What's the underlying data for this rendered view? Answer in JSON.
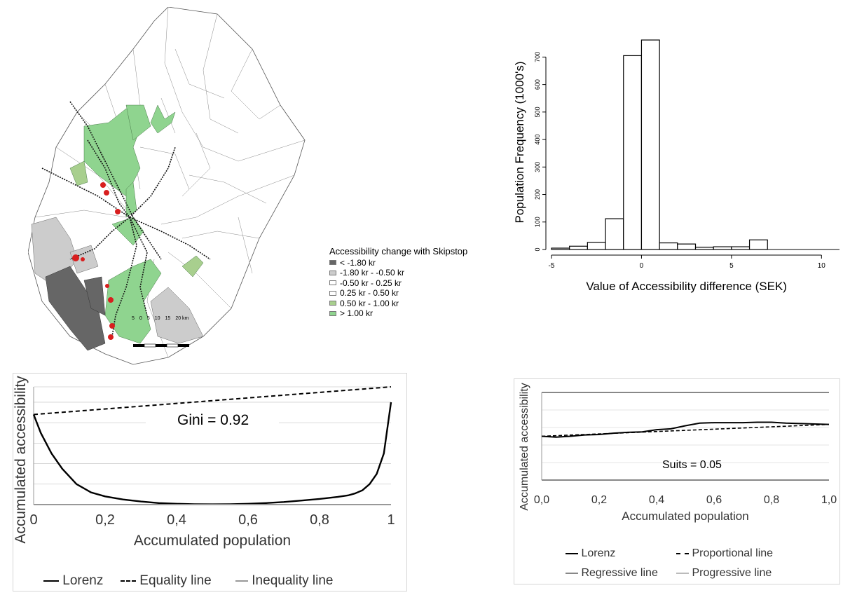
{
  "map": {
    "legend_title": "Accessibility change with Skipstop",
    "legend_items": [
      {
        "label": "< -1.80 kr",
        "color": "#666666"
      },
      {
        "label": "-1.80 kr - -0.50 kr",
        "color": "#cccccc"
      },
      {
        "label": "-0.50 kr - 0.25 kr",
        "color": "#ffffff"
      },
      {
        "label": "0.25 kr - 0.50 kr",
        "color": "#ffffff"
      },
      {
        "label": "0.50 kr - 1.00 kr",
        "color": "#a8cf8e"
      },
      {
        "label": "> 1.00 kr",
        "color": "#8fd48f"
      }
    ],
    "scale_labels": [
      "5",
      "0",
      "5",
      "10",
      "15",
      "20 km"
    ]
  },
  "chart_data": [
    {
      "type": "bar",
      "xlabel": "Value of Accessibility difference (SEK)",
      "ylabel": "Population Frequency (1000's)",
      "bin_edges": [
        -5,
        -4,
        -3,
        -2,
        -1,
        0,
        1,
        2,
        3,
        4,
        5,
        6,
        7,
        8,
        9,
        10,
        11
      ],
      "values": [
        5,
        12,
        26,
        112,
        705,
        762,
        24,
        20,
        8,
        10,
        10,
        35,
        0,
        0,
        0,
        0
      ],
      "xticks": [
        "-5",
        "0",
        "5",
        "10"
      ],
      "yticks": [
        "0",
        "100",
        "200",
        "300",
        "400",
        "500",
        "600",
        "700"
      ],
      "xlim": [
        -5,
        11
      ],
      "ylim": [
        0,
        780
      ]
    },
    {
      "type": "line",
      "xlabel": "Accumulated population",
      "ylabel": "Accumulated accessibility",
      "annotation": "Gini = 0.92",
      "xticks": [
        "0",
        "0,2",
        "0,4",
        "0,6",
        "0,8",
        "1"
      ],
      "xlim": [
        0,
        1
      ],
      "ylim": [
        0,
        1.15
      ],
      "series": [
        {
          "name": "Lorenz",
          "style": "solid",
          "x": [
            0,
            0.02,
            0.05,
            0.08,
            0.12,
            0.16,
            0.2,
            0.25,
            0.3,
            0.35,
            0.4,
            0.45,
            0.5,
            0.55,
            0.6,
            0.65,
            0.7,
            0.75,
            0.8,
            0.85,
            0.88,
            0.9,
            0.92,
            0.94,
            0.96,
            0.98,
            1.0
          ],
          "y": [
            0.88,
            0.7,
            0.5,
            0.35,
            0.2,
            0.12,
            0.08,
            0.05,
            0.03,
            0.015,
            0.008,
            0.004,
            0.003,
            0.004,
            0.008,
            0.015,
            0.025,
            0.04,
            0.055,
            0.075,
            0.09,
            0.11,
            0.14,
            0.2,
            0.3,
            0.5,
            1.0
          ]
        },
        {
          "name": "Equality line",
          "style": "dashed",
          "x": [
            0,
            1
          ],
          "y": [
            0.88,
            1.15
          ]
        },
        {
          "name": "Inequality line",
          "style": "solid-grey",
          "x": [
            0,
            1
          ],
          "y": [
            0,
            0
          ]
        }
      ]
    },
    {
      "type": "line",
      "xlabel": "Accumulated population",
      "ylabel": "Accumulated accessibility",
      "annotation": "Suits = 0.05",
      "xticks": [
        "0,0",
        "0,2",
        "0,4",
        "0,6",
        "0,8",
        "1,0"
      ],
      "xlim": [
        0,
        1
      ],
      "ylim": [
        -1,
        1
      ],
      "series": [
        {
          "name": "Lorenz",
          "style": "solid",
          "x": [
            0,
            0.05,
            0.1,
            0.15,
            0.2,
            0.25,
            0.3,
            0.35,
            0.4,
            0.45,
            0.5,
            0.55,
            0.6,
            0.65,
            0.7,
            0.75,
            0.8,
            0.85,
            0.9,
            0.95,
            1.0
          ],
          "y": [
            0,
            -0.02,
            0.0,
            0.03,
            0.04,
            0.07,
            0.09,
            0.1,
            0.15,
            0.17,
            0.24,
            0.3,
            0.31,
            0.31,
            0.31,
            0.32,
            0.32,
            0.3,
            0.29,
            0.28,
            0.27
          ]
        },
        {
          "name": "Proportional line",
          "style": "dashed",
          "x": [
            0,
            1
          ],
          "y": [
            0,
            0.27
          ]
        },
        {
          "name": "Regressive line",
          "style": "solid-grey",
          "x": [
            0,
            1
          ],
          "y": [
            1,
            1
          ]
        },
        {
          "name": "Progressive line",
          "style": "solid-lightgrey",
          "x": [
            0,
            1
          ],
          "y": [
            -1,
            -1
          ]
        }
      ]
    }
  ]
}
